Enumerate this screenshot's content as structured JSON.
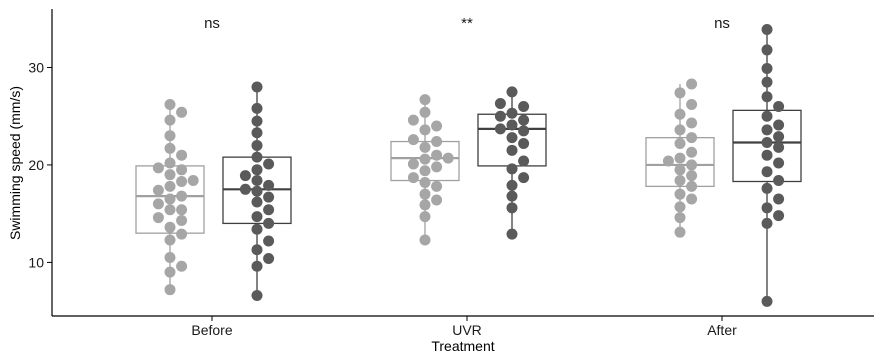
{
  "chart_data": {
    "type": "box",
    "xlabel": "Treatment",
    "ylabel": "Swimming speed (mm/s)",
    "ylim": [
      4.5,
      36
    ],
    "yticks": [
      10,
      20,
      30
    ],
    "categories": [
      "Before",
      "UVR",
      "After"
    ],
    "significance": [
      "ns",
      "**",
      "ns"
    ],
    "grid": false,
    "series": [
      {
        "color": "#a6a6a6",
        "box_stroke": "#a0a0a0",
        "boxes": [
          {
            "min": 7.2,
            "q1": 13.0,
            "median": 16.8,
            "q3": 19.9,
            "max": 26.2
          },
          {
            "min": 12.3,
            "q1": 18.4,
            "median": 20.7,
            "q3": 22.4,
            "max": 26.7
          },
          {
            "min": 13.1,
            "q1": 17.8,
            "median": 20.0,
            "q3": 22.8,
            "max": 28.3
          }
        ],
        "points": [
          [
            7.2,
            9.0,
            9.6,
            10.5,
            12.3,
            12.9,
            13.6,
            14.3,
            14.6,
            15.4,
            15.4,
            16.0,
            16.5,
            16.8,
            17.4,
            17.8,
            18.3,
            18.4,
            19.0,
            19.5,
            19.7,
            20.2,
            21.0,
            21.7,
            23.0,
            24.6,
            25.4,
            26.2
          ],
          [
            12.3,
            14.7,
            15.9,
            16.4,
            17.0,
            17.8,
            18.2,
            18.7,
            19.4,
            19.8,
            20.1,
            20.6,
            20.7,
            21.0,
            21.8,
            22.4,
            22.6,
            23.6,
            24.0,
            24.6,
            25.4,
            26.7
          ],
          [
            13.1,
            14.6,
            15.7,
            16.5,
            17.0,
            17.8,
            18.4,
            18.9,
            19.5,
            20.0,
            20.4,
            20.7,
            21.3,
            22.2,
            22.8,
            23.6,
            24.3,
            25.2,
            26.2,
            27.4,
            28.3
          ]
        ]
      },
      {
        "color": "#5a5a5a",
        "box_stroke": "#404040",
        "boxes": [
          {
            "min": 6.6,
            "q1": 14.0,
            "median": 17.5,
            "q3": 20.8,
            "max": 28.0
          },
          {
            "min": 12.9,
            "q1": 19.9,
            "median": 23.7,
            "q3": 25.2,
            "max": 27.5
          },
          {
            "min": 6.0,
            "q1": 18.3,
            "median": 22.3,
            "q3": 25.6,
            "max": 33.9
          }
        ],
        "points": [
          [
            6.6,
            9.6,
            10.4,
            11.3,
            12.2,
            13.4,
            14.0,
            14.7,
            15.4,
            16.2,
            16.7,
            17.3,
            17.5,
            17.9,
            18.4,
            18.9,
            19.5,
            20.1,
            20.8,
            22.0,
            23.3,
            24.5,
            25.8,
            28.0
          ],
          [
            12.9,
            15.6,
            16.8,
            17.9,
            18.7,
            19.6,
            20.4,
            21.5,
            22.2,
            22.8,
            23.5,
            23.7,
            24.1,
            24.6,
            25.0,
            25.3,
            26.0,
            26.3,
            27.5
          ],
          [
            6.0,
            14.0,
            14.8,
            15.6,
            16.5,
            17.6,
            18.4,
            19.3,
            20.2,
            21.0,
            21.8,
            22.3,
            22.9,
            23.6,
            24.1,
            25.0,
            26.0,
            27.0,
            28.5,
            29.9,
            31.8,
            33.9
          ]
        ]
      }
    ]
  }
}
